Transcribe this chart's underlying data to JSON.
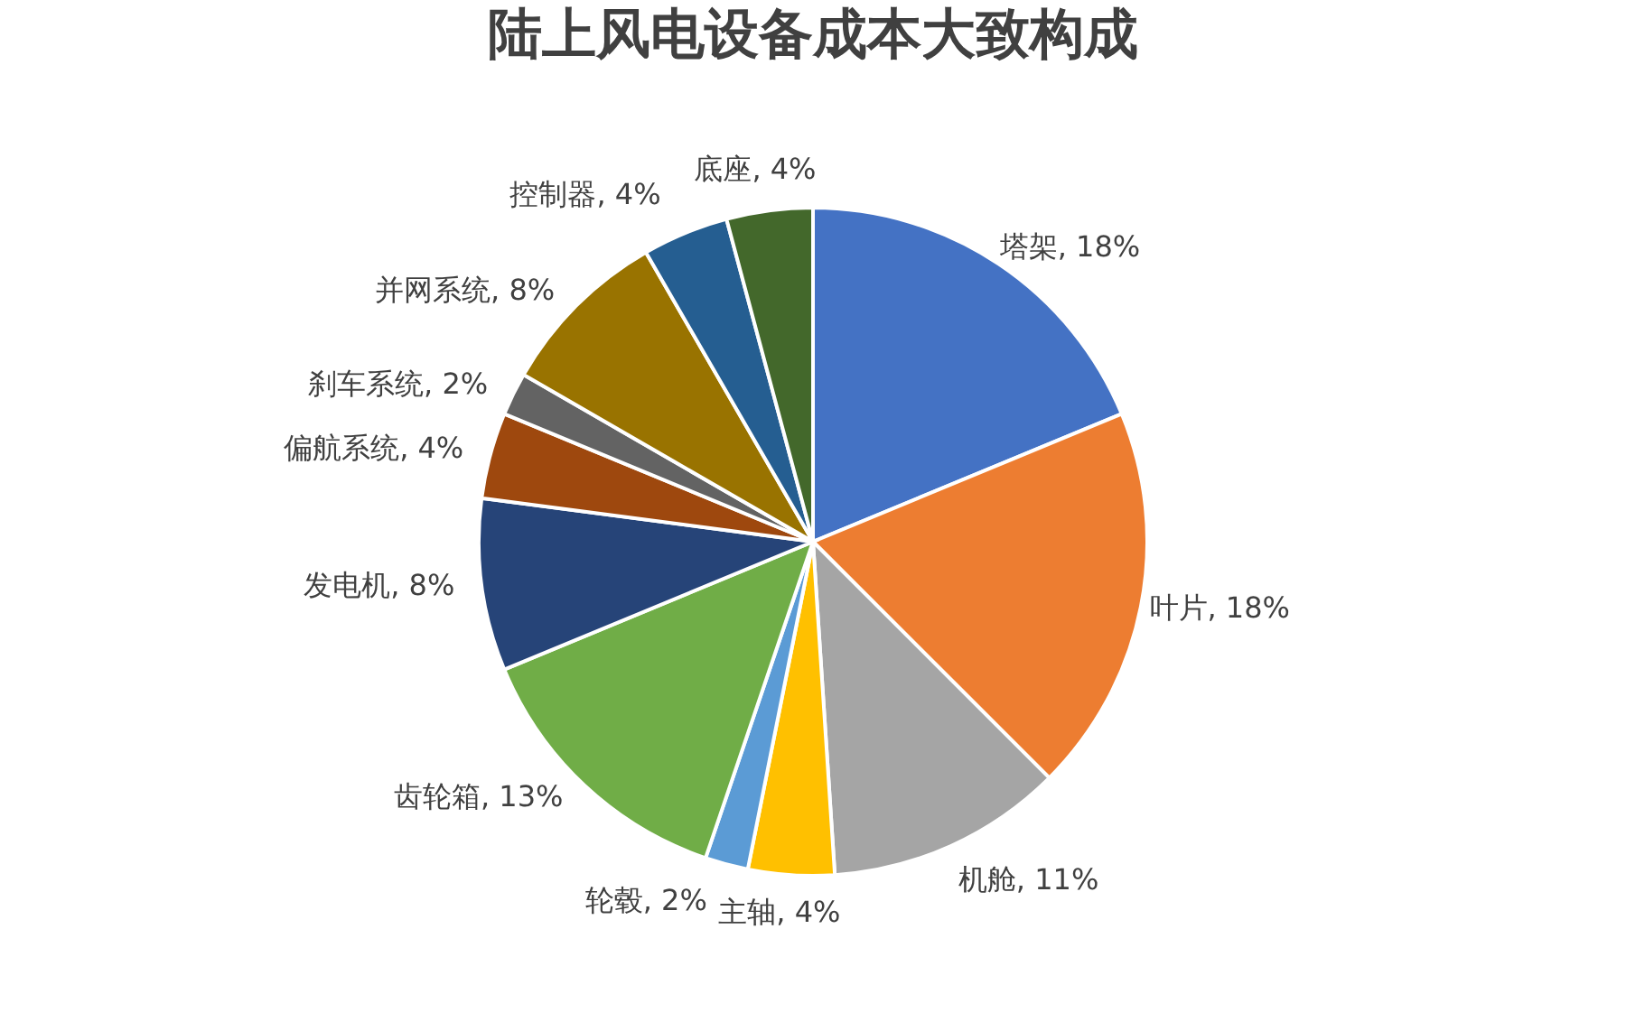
{
  "chart_data": {
    "type": "pie",
    "title": "陆上风电设备成本大致构成",
    "categories": [
      "塔架",
      "叶片",
      "机舱",
      "主轴",
      "轮毂",
      "齿轮箱",
      "发电机",
      "偏航系统",
      "刹车系统",
      "并网系统",
      "控制器",
      "底座"
    ],
    "values": [
      18,
      18,
      11,
      4,
      2,
      13,
      8,
      4,
      2,
      8,
      4,
      4
    ],
    "value_labels": [
      "18%",
      "18%",
      "11%",
      "4%",
      "2%",
      "13%",
      "8%",
      "4%",
      "2%",
      "8%",
      "4%",
      "4%"
    ],
    "colors": [
      "#4472c4",
      "#ed7d31",
      "#a5a5a5",
      "#ffc000",
      "#5b9bd5",
      "#70ad47",
      "#264478",
      "#9e480e",
      "#636363",
      "#997300",
      "#255e91",
      "#43682b"
    ],
    "legend": false
  }
}
